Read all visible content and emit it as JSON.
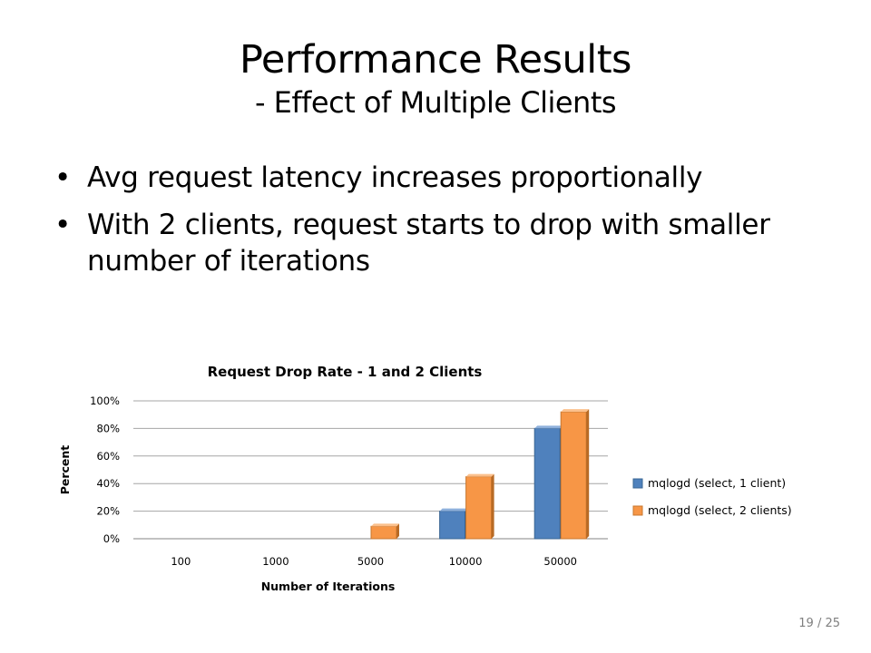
{
  "slide": {
    "title": "Performance Results",
    "subtitle": "- Effect of Multiple Clients",
    "bullets": [
      "Avg request latency increases proportionally",
      "With 2 clients, request starts to drop with smaller number of iterations"
    ],
    "page_counter": "19 / 25"
  },
  "chart_data": {
    "type": "bar",
    "title": "Request Drop Rate - 1 and 2 Clients",
    "xlabel": "Number of Iterations",
    "ylabel": "Percent",
    "categories": [
      "100",
      "1000",
      "5000",
      "10000",
      "50000"
    ],
    "series": [
      {
        "name": "mqlogd (select, 1 client)",
        "values": [
          0,
          0,
          0,
          20,
          80
        ],
        "color": "#4f81bd"
      },
      {
        "name": "mqlogd (select, 2 clients)",
        "values": [
          0,
          0,
          9,
          45,
          92
        ],
        "color": "#f79646"
      }
    ],
    "ylim": [
      0,
      100
    ],
    "yticks": [
      "0%",
      "20%",
      "40%",
      "60%",
      "80%",
      "100%"
    ],
    "grid": true,
    "legend": "right"
  }
}
